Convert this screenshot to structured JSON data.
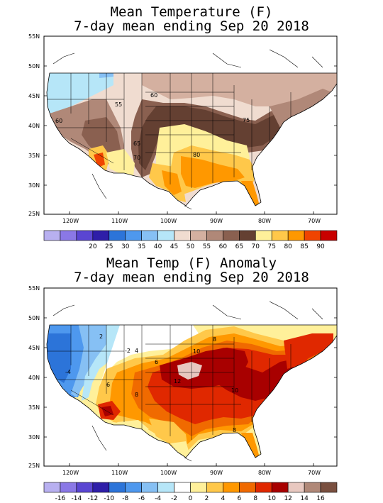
{
  "colors": {
    "accent": "#cc0000"
  },
  "panel1": {
    "title_line1": "Mean Temperature (F)",
    "title_line2": "7-day mean ending Sep 20 2018",
    "lat_labels": [
      "55N",
      "50N",
      "45N",
      "40N",
      "35N",
      "30N",
      "25N"
    ],
    "lon_labels": [
      "120W",
      "110W",
      "100W",
      "90W",
      "80W",
      "70W"
    ],
    "colorbar_labels": [
      "20",
      "25",
      "30",
      "35",
      "40",
      "45",
      "50",
      "55",
      "60",
      "65",
      "70",
      "75",
      "80",
      "85",
      "90"
    ],
    "colorbar_colors": [
      "#b8b0f0",
      "#8a78e6",
      "#5a46d2",
      "#2e1ea8",
      "#2c74d9",
      "#4e98ee",
      "#86c0f4",
      "#b6e6f8",
      "#f0dcd0",
      "#d4b0a0",
      "#b08878",
      "#8a6050",
      "#644032",
      "#fff09a",
      "#ffc84a",
      "#ff9800",
      "#f04400",
      "#c80000"
    ],
    "contour_labels": [
      "60",
      "55",
      "60",
      "75",
      "65",
      "70",
      "80",
      "70"
    ]
  },
  "panel2": {
    "title_line1": "Mean Temp (F) Anomaly",
    "title_line2": "7-day mean ending Sep 20 2018",
    "lat_labels": [
      "55N",
      "50N",
      "45N",
      "40N",
      "35N",
      "30N",
      "25N"
    ],
    "lon_labels": [
      "120W",
      "110W",
      "100W",
      "90W",
      "80W",
      "70W"
    ],
    "colorbar_labels": [
      "-16",
      "-14",
      "-12",
      "-10",
      "-8",
      "-6",
      "-4",
      "-2",
      "0",
      "2",
      "4",
      "6",
      "8",
      "10",
      "12",
      "14",
      "16"
    ],
    "colorbar_colors": [
      "#b8b0f0",
      "#8a78e6",
      "#5a46d2",
      "#2e1ea8",
      "#2c74d9",
      "#4e98ee",
      "#86c0f4",
      "#b6e6f8",
      "#ffffff",
      "#fff09a",
      "#ffc84a",
      "#ff9800",
      "#f06a00",
      "#e02800",
      "#a80000",
      "#e8c8c0",
      "#b08878",
      "#7a5040"
    ],
    "contour_labels": [
      "2",
      "-2",
      "10",
      "6",
      "4",
      "12",
      "8",
      "-4",
      "6",
      "8",
      "10",
      "8",
      "6"
    ]
  }
}
